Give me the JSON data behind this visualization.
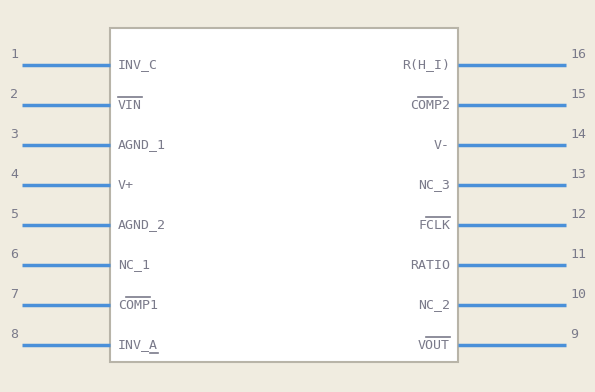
{
  "bg_color": "#f0ece0",
  "body_color": "#b8b4a8",
  "body_fill": "#ffffff",
  "pin_color": "#4a90d9",
  "text_color": "#7a7a8a",
  "pin_number_color": "#7a7a8a",
  "left_pins": [
    {
      "num": 1,
      "label": "INV_C",
      "overline": ""
    },
    {
      "num": 2,
      "label": "VIN",
      "overline": "VIN"
    },
    {
      "num": 3,
      "label": "AGND_1",
      "overline": ""
    },
    {
      "num": 4,
      "label": "V+",
      "overline": ""
    },
    {
      "num": 5,
      "label": "AGND_2",
      "overline": ""
    },
    {
      "num": 6,
      "label": "NC_1",
      "overline": ""
    },
    {
      "num": 7,
      "label": "COMP1",
      "overline": "COMP1"
    },
    {
      "num": 8,
      "label": "INV_A",
      "overline": ""
    }
  ],
  "right_pins": [
    {
      "num": 16,
      "label": "R(H_I)",
      "overline": ""
    },
    {
      "num": 15,
      "label": "COMP2",
      "overline": "COMP2"
    },
    {
      "num": 14,
      "label": "V-",
      "overline": ""
    },
    {
      "num": 13,
      "label": "NC_3",
      "overline": ""
    },
    {
      "num": 12,
      "label": "FCLK",
      "overline": "FCLK"
    },
    {
      "num": 11,
      "label": "RATIO",
      "overline": ""
    },
    {
      "num": 10,
      "label": "NC_2",
      "overline": ""
    },
    {
      "num": 9,
      "label": "VOUT",
      "overline": "VOUT"
    }
  ]
}
